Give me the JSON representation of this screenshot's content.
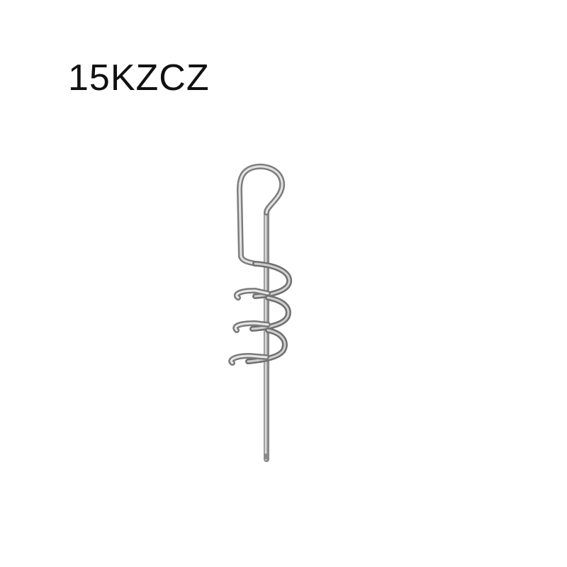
{
  "product": {
    "code": "15KZCZ",
    "image_icon": "spring-lock-pin-icon"
  },
  "colors": {
    "background": "#ffffff",
    "text": "#111111",
    "metal_light": "#e6e6e6",
    "metal_mid": "#a9a9a9",
    "metal_dark": "#6e6e6e"
  }
}
